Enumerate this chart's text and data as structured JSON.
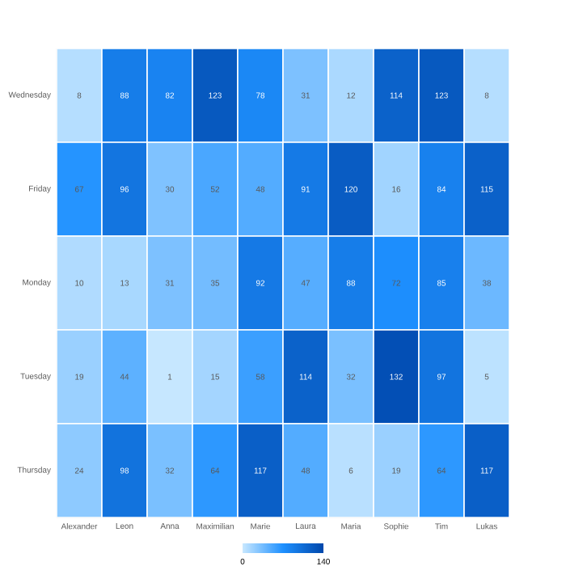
{
  "chart_data": {
    "type": "heatmap",
    "categories": [
      "Alexander",
      "Leon",
      "Anna",
      "Maximilian",
      "Marie",
      "Laura",
      "Maria",
      "Sophie",
      "Tim",
      "Lukas"
    ],
    "y_categories": [
      "Wednesday",
      "Friday",
      "Monday",
      "Tuesday",
      "Thursday"
    ],
    "cells": [
      [
        8,
        88,
        82,
        123,
        78,
        31,
        12,
        114,
        123,
        8
      ],
      [
        67,
        96,
        30,
        52,
        48,
        91,
        120,
        16,
        84,
        115
      ],
      [
        10,
        13,
        31,
        35,
        92,
        47,
        88,
        72,
        85,
        38
      ],
      [
        19,
        44,
        1,
        15,
        58,
        114,
        32,
        132,
        97,
        5
      ],
      [
        24,
        98,
        32,
        64,
        117,
        48,
        6,
        19,
        64,
        117
      ]
    ],
    "clim": [
      0,
      140
    ],
    "cticks": [
      0,
      140
    ],
    "data_labels": true
  }
}
